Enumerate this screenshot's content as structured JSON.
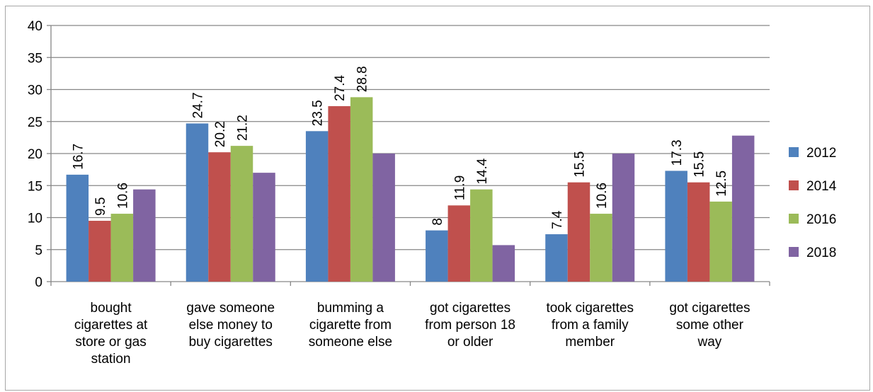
{
  "chart_data": {
    "type": "bar",
    "title": "",
    "xlabel": "",
    "ylabel": "",
    "ylim": [
      0,
      40
    ],
    "yticks": [
      0,
      5,
      10,
      15,
      20,
      25,
      30,
      35,
      40
    ],
    "grid": true,
    "legend_position": "right",
    "categories": [
      [
        "bought",
        "cigarettes at",
        "store or gas",
        "station"
      ],
      [
        "gave someone",
        "else money to",
        "buy cigarettes"
      ],
      [
        "bumming a",
        "cigarette from",
        "someone else"
      ],
      [
        "got cigarettes",
        "from person 18",
        "or older"
      ],
      [
        "took cigarettes",
        "from a family",
        "member"
      ],
      [
        "got cigarettes",
        "some other",
        "way"
      ]
    ],
    "series": [
      {
        "name": "2012",
        "color": "#4f81bd",
        "values": [
          16.7,
          24.7,
          23.5,
          8,
          7.4,
          17.3
        ],
        "labels": [
          "16.7",
          "24.7",
          "23.5",
          "8",
          "7.4",
          "17.3"
        ]
      },
      {
        "name": "2014",
        "color": "#c0504d",
        "values": [
          9.5,
          20.2,
          27.4,
          11.9,
          15.5,
          15.5
        ],
        "labels": [
          "9.5",
          "20.2",
          "27.4",
          "11.9",
          "15.5",
          "15.5"
        ]
      },
      {
        "name": "2016",
        "color": "#9bbb59",
        "values": [
          10.6,
          21.2,
          28.8,
          14.4,
          10.6,
          12.5
        ],
        "labels": [
          "10.6",
          "21.2",
          "28.8",
          "14.4",
          "10.6",
          "12.5"
        ]
      },
      {
        "name": "2018",
        "color": "#8064a2",
        "values": [
          14.4,
          17.0,
          20.0,
          5.7,
          20.0,
          22.8
        ],
        "labels": [
          null,
          null,
          null,
          null,
          null,
          null
        ]
      }
    ]
  }
}
